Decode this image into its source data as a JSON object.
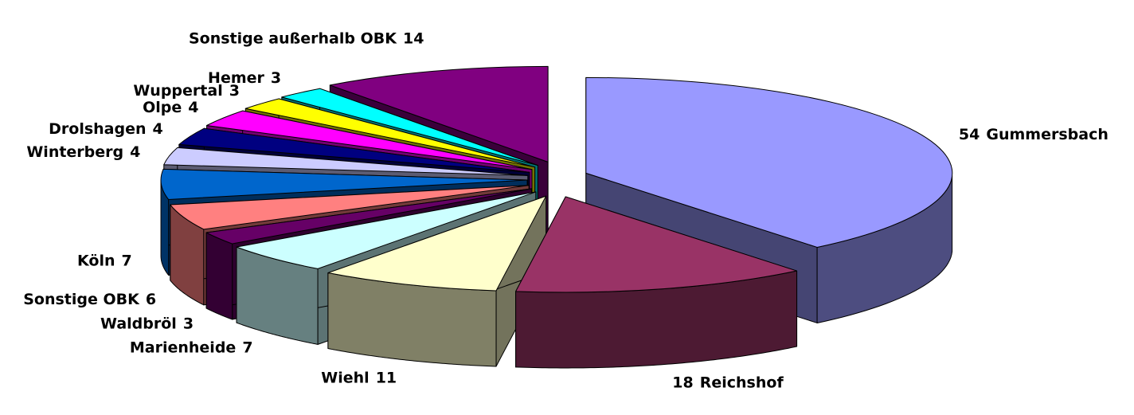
{
  "chart_data": {
    "type": "pie3d",
    "categories": [
      "Gummersbach",
      "Reichshof",
      "Wiehl",
      "Marienheide",
      "Waldbröl",
      "Sonstige OBK",
      "Köln",
      "Winterberg",
      "Drolshagen",
      "Olpe",
      "Wuppertal",
      "Hemer",
      "Sonstige außerhalb OBK"
    ],
    "values": [
      54,
      18,
      11,
      7,
      3,
      6,
      7,
      4,
      4,
      4,
      3,
      3,
      14
    ],
    "colors": [
      "#9999ff",
      "#993366",
      "#ffffcc",
      "#ccffff",
      "#660066",
      "#ff8080",
      "#0066cc",
      "#ccccff",
      "#000080",
      "#ff00ff",
      "#ffff00",
      "#00ffff",
      "#800080"
    ]
  }
}
